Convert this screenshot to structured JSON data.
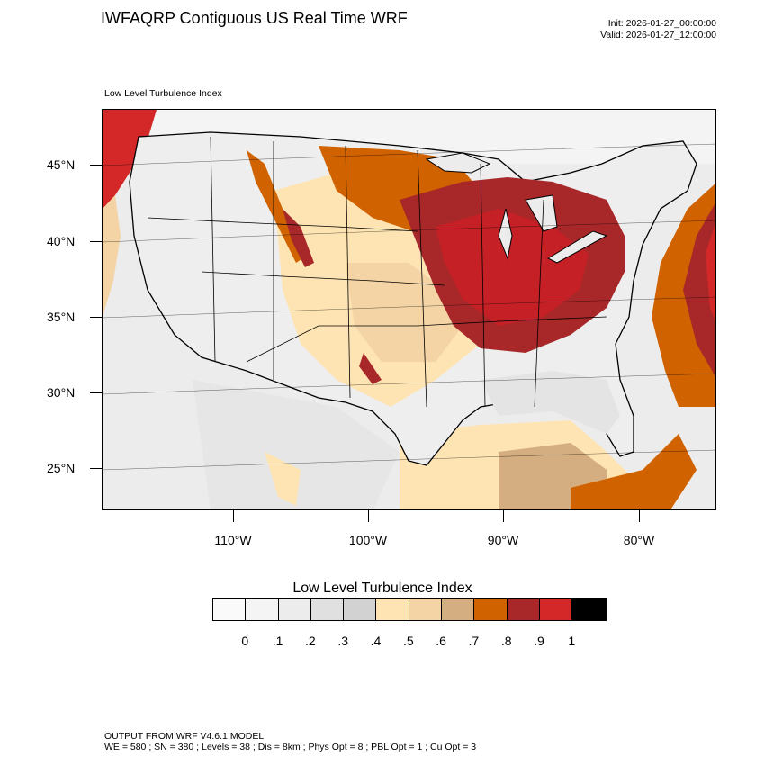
{
  "header": {
    "title": "IWFAQRP Contiguous US Real Time WRF",
    "init": "Init: 2026-01-27_00:00:00",
    "valid": "Valid: 2026-01-27_12:00:00"
  },
  "plot": {
    "field_label": "Low Level Turbulence Index",
    "lat_labels": [
      "45°N",
      "40°N",
      "35°N",
      "30°N",
      "25°N"
    ],
    "lon_labels": [
      "110°W",
      "100°W",
      "90°W",
      "80°W"
    ]
  },
  "colorbar": {
    "title": "Low Level Turbulence Index",
    "labels": [
      "0",
      ".1",
      ".2",
      ".3",
      ".4",
      ".5",
      ".6",
      ".7",
      ".8",
      ".9",
      "1"
    ],
    "colors": [
      "#fafafa",
      "#f4f4f4",
      "#ececec",
      "#e0e0e0",
      "#d2d2d2",
      "#ffe4b3",
      "#f4d4a4",
      "#d4ad80",
      "#d06200",
      "#a8282a",
      "#d42828",
      "#000000"
    ]
  },
  "footer": {
    "line1": "OUTPUT FROM WRF V4.6.1 MODEL",
    "line2": "WE = 580 ; SN = 380 ; Levels = 38 ; Dis = 8km ; Phys Opt = 8 ; PBL Opt = 1 ; Cu Opt = 3"
  }
}
